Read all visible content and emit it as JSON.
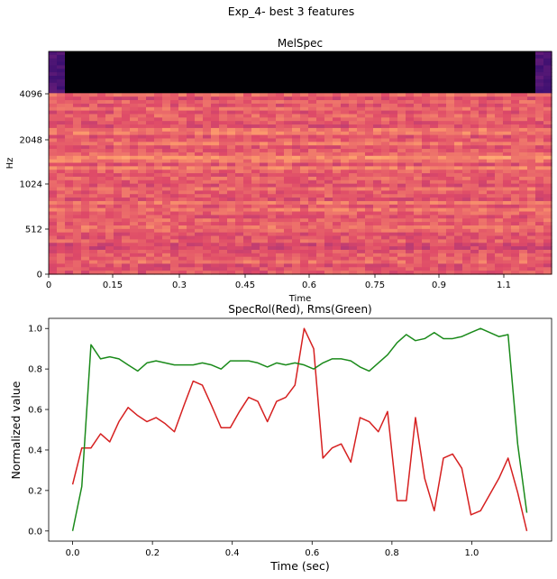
{
  "figure": {
    "title": "Exp_4- best 3 features"
  },
  "chart_data": [
    {
      "type": "heatmap",
      "title": "MelSpec",
      "xlabel": "Time",
      "ylabel": "Hz",
      "xlim": [
        0,
        1.25
      ],
      "x_ticks": [
        "0",
        "0.15",
        "0.3",
        "0.45",
        "0.6",
        "0.75",
        "0.9",
        "1.1"
      ],
      "y_ticks": [
        "0",
        "512",
        "1024",
        "2048",
        "4096"
      ],
      "colormap": [
        "#000004",
        "#3b0f70",
        "#8c2981",
        "#de4968",
        "#fe9f6d",
        "#fcfdbf"
      ]
    },
    {
      "type": "line",
      "title": "SpecRol(Red), Rms(Green)",
      "xlabel": "Time (sec)",
      "ylabel": "Normalized value",
      "xlim": [
        -0.06,
        1.2
      ],
      "ylim": [
        -0.05,
        1.05
      ],
      "x_ticks": [
        "0.0",
        "0.2",
        "0.4",
        "0.6",
        "0.8",
        "1.0"
      ],
      "y_ticks": [
        "0.0",
        "0.2",
        "0.4",
        "0.6",
        "0.8",
        "1.0"
      ],
      "x": [
        0.0,
        0.023,
        0.046,
        0.07,
        0.093,
        0.116,
        0.139,
        0.163,
        0.186,
        0.209,
        0.232,
        0.255,
        0.279,
        0.302,
        0.325,
        0.348,
        0.372,
        0.395,
        0.418,
        0.441,
        0.464,
        0.488,
        0.511,
        0.534,
        0.557,
        0.58,
        0.604,
        0.627,
        0.65,
        0.673,
        0.697,
        0.72,
        0.743,
        0.766,
        0.789,
        0.813,
        0.836,
        0.859,
        0.882,
        0.906,
        0.929,
        0.952,
        0.975,
        0.998,
        1.022,
        1.045,
        1.068,
        1.091,
        1.115,
        1.138
      ],
      "series": [
        {
          "name": "SpecRol",
          "color": "#d62020",
          "values": [
            0.23,
            0.41,
            0.41,
            0.48,
            0.44,
            0.54,
            0.61,
            0.57,
            0.54,
            0.56,
            0.53,
            0.49,
            0.62,
            0.74,
            0.72,
            0.62,
            0.51,
            0.51,
            0.59,
            0.66,
            0.64,
            0.54,
            0.64,
            0.66,
            0.72,
            1.0,
            0.9,
            0.36,
            0.41,
            0.43,
            0.34,
            0.56,
            0.54,
            0.49,
            0.59,
            0.15,
            0.15,
            0.56,
            0.26,
            0.1,
            0.36,
            0.38,
            0.31,
            0.08,
            0.1,
            0.18,
            0.26,
            0.36,
            0.19,
            0.0
          ]
        },
        {
          "name": "Rms",
          "color": "#1a8a1a",
          "values": [
            0.0,
            0.22,
            0.92,
            0.85,
            0.86,
            0.85,
            0.82,
            0.79,
            0.83,
            0.84,
            0.83,
            0.82,
            0.82,
            0.82,
            0.83,
            0.82,
            0.8,
            0.84,
            0.84,
            0.84,
            0.83,
            0.81,
            0.83,
            0.82,
            0.83,
            0.82,
            0.8,
            0.83,
            0.85,
            0.85,
            0.84,
            0.81,
            0.79,
            0.83,
            0.87,
            0.93,
            0.97,
            0.94,
            0.95,
            0.98,
            0.95,
            0.95,
            0.96,
            0.98,
            1.0,
            0.98,
            0.96,
            0.97,
            0.43,
            0.09
          ]
        }
      ]
    }
  ]
}
